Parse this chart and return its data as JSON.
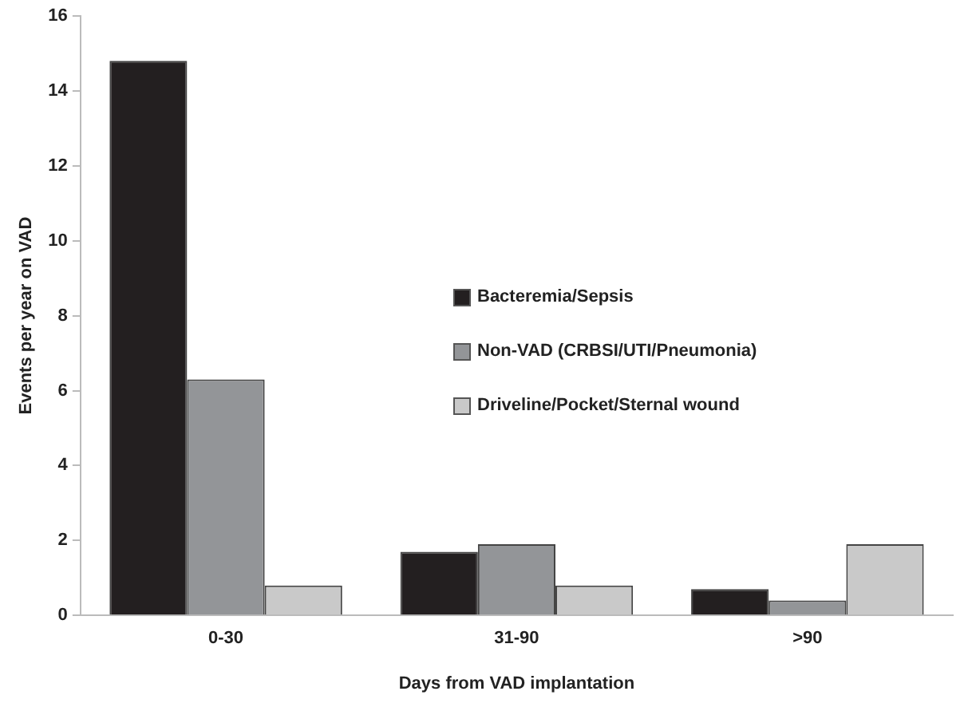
{
  "chart_data": {
    "type": "bar",
    "xlabel": "Days from VAD implantation",
    "ylabel": "Events per year on VAD",
    "categories": [
      "0-30",
      "31-90",
      ">90"
    ],
    "series": [
      {
        "name": "Bacteremia/Sepsis",
        "color": "#231f20",
        "values": [
          14.8,
          1.7,
          0.7
        ]
      },
      {
        "name": "Non-VAD (CRBSI/UTI/Pneumonia)",
        "color": "#939598",
        "values": [
          6.3,
          1.9,
          0.4
        ]
      },
      {
        "name": "Driveline/Pocket/Sternal wound",
        "color": "#c9c9c9",
        "values": [
          0.8,
          0.8,
          1.9
        ]
      }
    ],
    "ylim": [
      0,
      16
    ],
    "yticks": [
      0,
      2,
      4,
      6,
      8,
      10,
      12,
      14,
      16
    ],
    "grid": false,
    "legend": "right"
  }
}
